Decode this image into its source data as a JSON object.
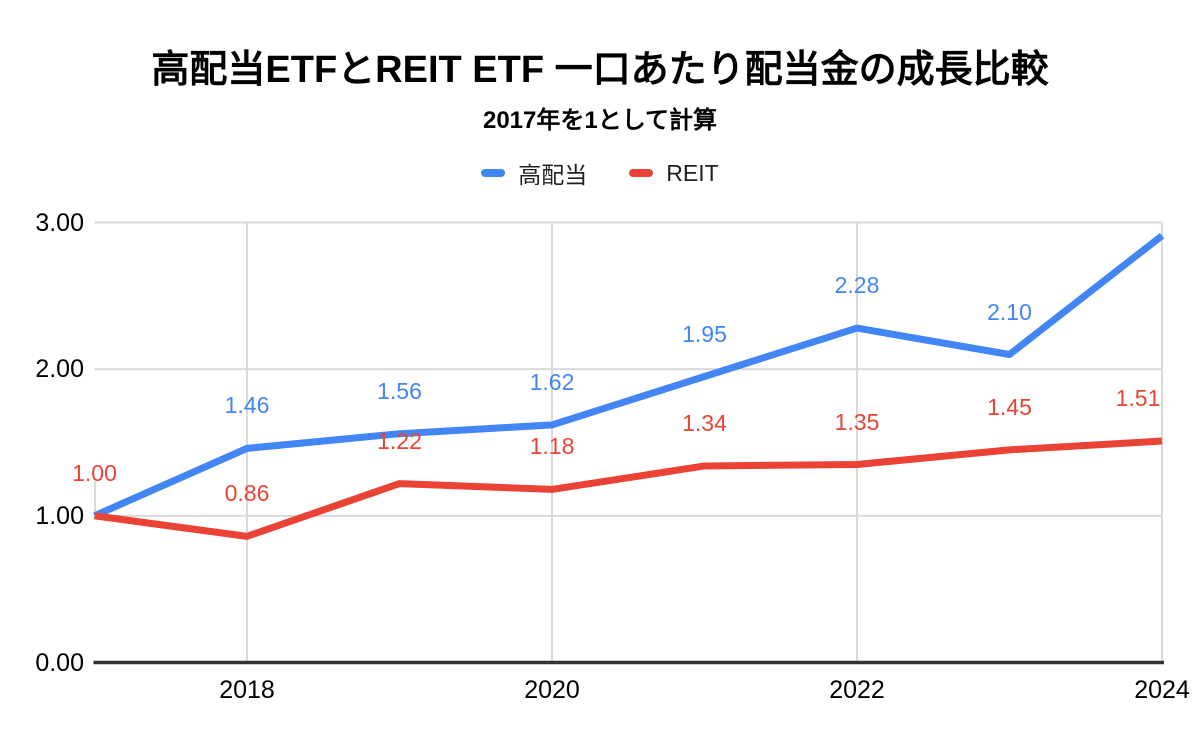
{
  "chart": {
    "title": "高配当ETFとREIT ETF 一口あたり配当金の成長比較",
    "subtitle": "2017年を1として計算"
  },
  "colors": {
    "background": "#FFFFFF",
    "title_text": "#000000",
    "legend_text": "#212121",
    "tick_label": "#000000",
    "grid": "#D9D9D9",
    "axis": "#333333",
    "series_high_dividend": "#4285F4",
    "series_reit": "#EA4335"
  },
  "chart_data": {
    "type": "line",
    "title": "高配当ETFとREIT ETF 一口あたり配当金の成長比較",
    "subtitle": "2017年を1として計算",
    "x": [
      2017,
      2018,
      2019,
      2020,
      2021,
      2022,
      2023,
      2024
    ],
    "series": [
      {
        "name": "高配当",
        "color": "#4285F4",
        "values": [
          1.0,
          1.46,
          1.56,
          1.62,
          1.95,
          2.28,
          2.1,
          2.91
        ],
        "point_labels": [
          "",
          "1.46",
          "1.56",
          "1.62",
          "1.95",
          "2.28",
          "2.10",
          ""
        ]
      },
      {
        "name": "REIT",
        "color": "#EA4335",
        "values": [
          1.0,
          0.86,
          1.22,
          1.18,
          1.34,
          1.35,
          1.45,
          1.51
        ],
        "point_labels": [
          "1.00",
          "0.86",
          "1.22",
          "1.18",
          "1.34",
          "1.35",
          "1.45",
          "1.51"
        ]
      }
    ],
    "x_axis": {
      "ticks": [
        {
          "value": 2018,
          "label": "2018"
        },
        {
          "value": 2020,
          "label": "2020"
        },
        {
          "value": 2022,
          "label": "2022"
        },
        {
          "value": 2024,
          "label": "2024"
        }
      ]
    },
    "y_axis": {
      "ticks": [
        {
          "value": 0,
          "label": "0.00"
        },
        {
          "value": 1,
          "label": "1.00"
        },
        {
          "value": 2,
          "label": "2.00"
        },
        {
          "value": 3,
          "label": "3.00"
        }
      ],
      "range": [
        0,
        3
      ]
    },
    "xlim": [
      2017,
      2024
    ],
    "ylim": [
      0,
      3
    ],
    "grid": true,
    "legend_position": "top"
  }
}
